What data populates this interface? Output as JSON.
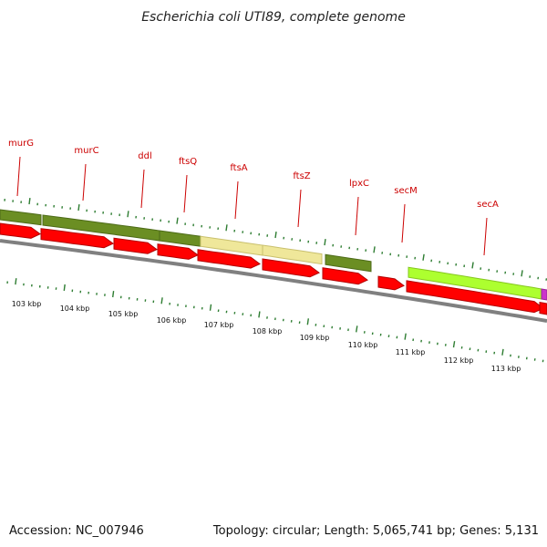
{
  "title": "Escherichia coli UTI89, complete genome",
  "footer": {
    "accession": "Accession: NC_007946",
    "summary": "Topology: circular; Length: 5,065,741 bp; Genes: 5,131"
  },
  "colors": {
    "label_line": "#cc0000",
    "tick": "#2e7d32",
    "backbone": "#808080",
    "cds": "#ff0000"
  },
  "gene_labels": [
    "murG",
    "murC",
    "ddl",
    "ftsQ",
    "ftsA",
    "ftsZ",
    "lpxC",
    "secM",
    "secA"
  ],
  "kbp_labels": [
    "103 kbp",
    "104 kbp",
    "105 kbp",
    "106 kbp",
    "107 kbp",
    "108 kbp",
    "109 kbp",
    "110 kbp",
    "111 kbp",
    "112 kbp",
    "113 kbp"
  ]
}
